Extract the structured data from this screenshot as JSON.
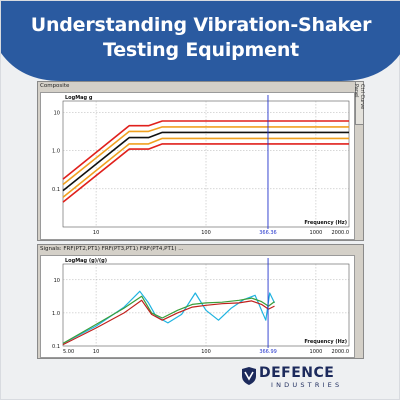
{
  "banner": {
    "title_line1": "Understanding Vibration-Shaker",
    "title_line2": "Testing Equipment",
    "color": "#2a5aa0"
  },
  "top_window": {
    "title": "Composite",
    "side_tab": "Ctrl Curve Panel"
  },
  "bottom_window": {
    "title": "Signals: FRF(PT2,PT1) FRF(PT3,PT1) FRF(PT4,PT1) ..."
  },
  "chart_data": [
    {
      "type": "line",
      "title": "",
      "plot_label": "LogMag g",
      "xlabel": "Frequency (Hz)",
      "ylabel": "",
      "x_scale": "log",
      "y_scale": "log",
      "xlim": [
        5,
        2000
      ],
      "ylim": [
        0.01,
        20
      ],
      "x_ticks": [
        "10",
        "100",
        "1000",
        "2000.0"
      ],
      "y_ticks": [
        "10",
        "1.0",
        "0.1"
      ],
      "cursor": {
        "x": 366.36,
        "label": "366.36"
      },
      "series": [
        {
          "color": "#e0201c",
          "values": [
            [
              5,
              0.18
            ],
            [
              20,
              4.5
            ],
            [
              30,
              4.5
            ],
            [
              40,
              6.0
            ],
            [
              2000,
              6.0
            ]
          ]
        },
        {
          "color": "#f0a020",
          "values": [
            [
              5,
              0.13
            ],
            [
              20,
              3.2
            ],
            [
              30,
              3.2
            ],
            [
              40,
              4.2
            ],
            [
              2000,
              4.2
            ]
          ]
        },
        {
          "color": "#111111",
          "values": [
            [
              5,
              0.09
            ],
            [
              20,
              2.2
            ],
            [
              30,
              2.2
            ],
            [
              40,
              3.0
            ],
            [
              2000,
              3.0
            ]
          ]
        },
        {
          "color": "#f0a020",
          "values": [
            [
              5,
              0.06
            ],
            [
              20,
              1.5
            ],
            [
              30,
              1.5
            ],
            [
              40,
              2.1
            ],
            [
              2000,
              2.1
            ]
          ]
        },
        {
          "color": "#e0201c",
          "values": [
            [
              5,
              0.045
            ],
            [
              20,
              1.1
            ],
            [
              30,
              1.1
            ],
            [
              40,
              1.5
            ],
            [
              2000,
              1.5
            ]
          ]
        }
      ]
    },
    {
      "type": "line",
      "title": "",
      "plot_label": "LogMag (g)/(g)",
      "xlabel": "Frequency (Hz)",
      "ylabel": "",
      "x_scale": "log",
      "y_scale": "log",
      "xlim": [
        5,
        2000
      ],
      "ylim": [
        0.1,
        30
      ],
      "x_ticks": [
        "5.00",
        "10",
        "100",
        "1000",
        "2000.0"
      ],
      "y_ticks": [
        "10",
        "1.0",
        "0.1"
      ],
      "cursor": {
        "x": 366.99,
        "label": "366.99"
      },
      "series": [
        {
          "color": "#1fb3e0",
          "values": [
            [
              5,
              0.12
            ],
            [
              10,
              0.4
            ],
            [
              18,
              1.5
            ],
            [
              25,
              4.5
            ],
            [
              30,
              2.0
            ],
            [
              35,
              0.8
            ],
            [
              45,
              0.5
            ],
            [
              60,
              0.9
            ],
            [
              80,
              4.0
            ],
            [
              100,
              1.2
            ],
            [
              130,
              0.6
            ],
            [
              170,
              1.4
            ],
            [
              220,
              2.5
            ],
            [
              280,
              3.4
            ],
            [
              350,
              0.6
            ],
            [
              380,
              4.0
            ],
            [
              420,
              2.0
            ]
          ]
        },
        {
          "color": "#3a9e3a",
          "values": [
            [
              5,
              0.12
            ],
            [
              10,
              0.45
            ],
            [
              18,
              1.4
            ],
            [
              26,
              3.2
            ],
            [
              32,
              1.0
            ],
            [
              40,
              0.7
            ],
            [
              55,
              1.2
            ],
            [
              75,
              1.8
            ],
            [
              100,
              2.0
            ],
            [
              140,
              2.1
            ],
            [
              200,
              2.4
            ],
            [
              260,
              2.8
            ],
            [
              320,
              2.2
            ],
            [
              370,
              1.6
            ],
            [
              420,
              2.2
            ]
          ]
        },
        {
          "color": "#c0201c",
          "values": [
            [
              5,
              0.11
            ],
            [
              10,
              0.35
            ],
            [
              18,
              1.0
            ],
            [
              26,
              2.4
            ],
            [
              32,
              0.9
            ],
            [
              40,
              0.6
            ],
            [
              55,
              1.0
            ],
            [
              75,
              1.5
            ],
            [
              100,
              1.7
            ],
            [
              140,
              1.9
            ],
            [
              200,
              2.0
            ],
            [
              260,
              2.3
            ],
            [
              320,
              1.8
            ],
            [
              370,
              1.3
            ],
            [
              420,
              1.6
            ]
          ]
        }
      ]
    }
  ],
  "logo": {
    "name": "DEFENCE",
    "sub": "INDUSTRIES",
    "color": "#1c2a5c"
  }
}
